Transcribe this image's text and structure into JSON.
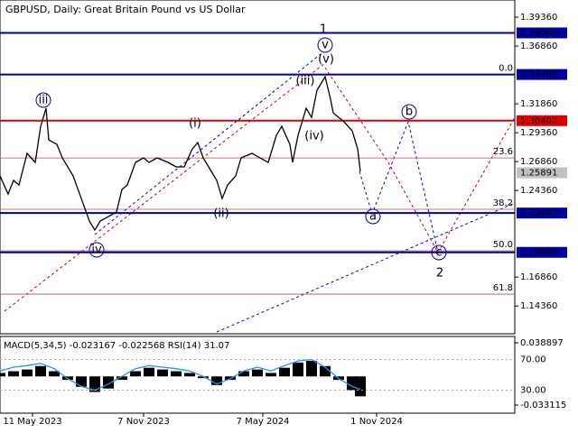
{
  "chart_data": {
    "type": "line",
    "title": "GBPUSD, Daily:  Great Britain Pound vs US Dollar",
    "xlim": [
      0,
      190
    ],
    "xticks": [
      {
        "value": 12,
        "label": "11 May 2023"
      },
      {
        "value": 53,
        "label": "7 Nov 2023"
      },
      {
        "value": 97,
        "label": "7 May 2024"
      },
      {
        "value": 139,
        "label": "1 Nov 2024"
      }
    ],
    "ylim": [
      1.1195,
      1.4085
    ],
    "yticks": [
      {
        "value": 1.3936,
        "label": "1.39360"
      },
      {
        "value": 1.3686,
        "label": "1.36860"
      },
      {
        "value": 1.3186,
        "label": "1.31860"
      },
      {
        "value": 1.2936,
        "label": "1.29360"
      },
      {
        "value": 1.2686,
        "label": "1.26860"
      },
      {
        "value": 1.2436,
        "label": "1.24360"
      },
      {
        "value": 1.1686,
        "label": "1.16860"
      },
      {
        "value": 1.1436,
        "label": "1.14360"
      }
    ],
    "series": [
      {
        "name": "GBPUSD",
        "color": "#000000",
        "x": [
          0,
          3,
          5,
          7,
          10,
          13,
          15,
          17,
          18,
          21,
          23,
          27,
          30,
          33,
          35,
          37,
          40,
          43,
          45,
          47,
          50,
          53,
          55,
          58,
          62,
          65,
          68,
          71,
          73,
          75,
          77,
          80,
          82,
          84,
          87,
          89,
          93,
          96,
          99,
          102,
          104,
          107,
          108,
          110,
          113,
          115,
          117,
          118,
          120,
          122,
          123,
          125,
          127,
          130,
          132,
          133
        ],
        "values": [
          1.2562,
          1.2405,
          1.2523,
          1.2483,
          1.2757,
          1.2679,
          1.2991,
          1.3148,
          1.2874,
          1.2835,
          1.2718,
          1.2562,
          1.2366,
          1.2171,
          1.2093,
          1.2171,
          1.221,
          1.2249,
          1.2444,
          1.2483,
          1.2679,
          1.2718,
          1.2679,
          1.2718,
          1.2679,
          1.264,
          1.264,
          1.2796,
          1.285,
          1.2718,
          1.264,
          1.2523,
          1.2366,
          1.2483,
          1.2562,
          1.2718,
          1.2757,
          1.2718,
          1.2679,
          1.2913,
          1.2991,
          1.2835,
          1.2679,
          1.2913,
          1.3148,
          1.3069,
          1.3304,
          1.3343,
          1.3421,
          1.3226,
          1.3108,
          1.3069,
          1.303,
          1.2952,
          1.2796,
          1.2601
        ]
      }
    ],
    "levels": [
      {
        "value": 1.38,
        "label": "1.38000",
        "color": "#0000a0"
      },
      {
        "value": 1.344,
        "label": "1.34400",
        "color": "#0000a0"
      },
      {
        "value": 1.30402,
        "label": "1.30402",
        "color": "#e00000"
      },
      {
        "value": 1.22403,
        "label": "1.22403",
        "color": "#0000a0"
      },
      {
        "value": 1.19,
        "label": "1.19000",
        "color": "#0000a0"
      },
      {
        "value": 1.25891,
        "label": "1.25891",
        "color": "#c0c0c0"
      }
    ],
    "fib": [
      {
        "value": 1.344,
        "label": "0.0"
      },
      {
        "value": 1.2717,
        "label": "23.6"
      },
      {
        "value": 1.2273,
        "label": "38.2"
      },
      {
        "value": 1.1913,
        "label": "50.0"
      },
      {
        "value": 1.1538,
        "label": "61.8"
      }
    ],
    "annotations": [
      "1",
      "v",
      "(v)",
      "(iii)",
      "iii",
      "(i)",
      "(iv)",
      "(ii)",
      "iv",
      "b",
      "a",
      "c",
      "2"
    ],
    "indicator": {
      "title": "MACD(5,34,5) -0.023167 -0.022568 RSI(14) 31.07",
      "x": [
        0,
        5,
        10,
        15,
        20,
        25,
        30,
        35,
        40,
        45,
        50,
        55,
        60,
        65,
        70,
        75,
        80,
        85,
        90,
        95,
        100,
        105,
        110,
        115,
        120,
        125,
        130,
        133
      ],
      "macd": [
        0.004,
        0.006,
        0.008,
        0.012,
        0.006,
        -0.004,
        -0.012,
        -0.018,
        -0.014,
        -0.004,
        0.006,
        0.01,
        0.008,
        0.006,
        0.004,
        -0.002,
        -0.01,
        -0.004,
        0.006,
        0.008,
        0.004,
        0.01,
        0.016,
        0.018,
        0.012,
        -0.004,
        -0.016,
        -0.023
      ],
      "rsi": [
        55,
        60,
        62,
        65,
        58,
        45,
        35,
        30,
        38,
        48,
        58,
        62,
        60,
        58,
        55,
        48,
        38,
        45,
        55,
        60,
        55,
        62,
        68,
        70,
        60,
        45,
        35,
        31
      ],
      "rsi_color": "#1e90ff",
      "macd_ylim": [
        -0.042508,
        0.046202
      ],
      "macd_ticks": [
        {
          "value": 0.038897,
          "label": "0.038897"
        },
        {
          "value": -0.033115,
          "label": "-0.033115"
        }
      ],
      "rsi_ylim": [
        0,
        100
      ],
      "rsi_ticks": [
        {
          "value": 70,
          "label": "70.00"
        },
        {
          "value": 30,
          "label": "30.00"
        }
      ]
    }
  }
}
